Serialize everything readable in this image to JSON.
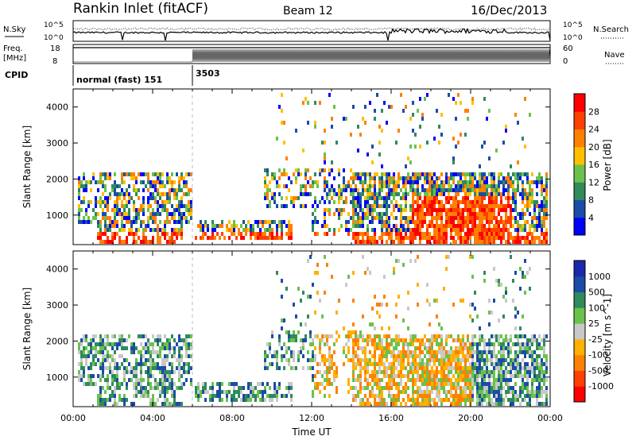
{
  "header": {
    "station": "Rankin Inlet (fitACF)",
    "beam": "Beam 12",
    "date": "16/Dec/2013"
  },
  "colors": {
    "power": [
      "#0000ff",
      "#1a4ca8",
      "#2f8a5c",
      "#6bc24a",
      "#ffc000",
      "#ff8000",
      "#ff4000",
      "#ff0000"
    ],
    "velocity": [
      "#ff0000",
      "#ff4000",
      "#ff8000",
      "#ffb000",
      "#c8c8c8",
      "#6bc24a",
      "#2f8a5c",
      "#1a4ca8",
      "#1a2aa8"
    ]
  },
  "chart_data": [
    {
      "type": "line",
      "panel": "noise",
      "left_label": "N.Sky",
      "right_label": "N.Search",
      "left_ticks": [
        "10^5",
        "10^0"
      ],
      "right_ticks": [
        "10^5",
        "10^0"
      ]
    },
    {
      "type": "line",
      "panel": "frequency",
      "left_label_1": "Freq.",
      "left_label_2": "[MHz]",
      "right_label": "Nave",
      "left_ticks": [
        "18",
        "8"
      ],
      "right_ticks": [
        "60",
        "0"
      ],
      "cpid_label": "CPID",
      "cpid_segments": [
        {
          "start_hour": 0,
          "text": "normal (fast) 151"
        },
        {
          "start_hour": 6,
          "text": "3503"
        }
      ]
    },
    {
      "type": "heatmap",
      "panel": "power",
      "ylabel": "Slant Range [km]",
      "ylim": [
        180,
        4500
      ],
      "yticks": [
        1000,
        2000,
        3000,
        4000
      ],
      "xlim": [
        0,
        24
      ],
      "colorbar_label": "Power [dB]",
      "colorbar_ticks": [
        "4",
        "8",
        "12",
        "16",
        "20",
        "24",
        "28"
      ]
    },
    {
      "type": "heatmap",
      "panel": "velocity",
      "ylabel": "Slant Range [km]",
      "ylim": [
        180,
        4500
      ],
      "yticks": [
        1000,
        2000,
        3000,
        4000
      ],
      "xlim": [
        0,
        24
      ],
      "xticks": [
        "00:00",
        "04:00",
        "08:00",
        "12:00",
        "16:00",
        "20:00",
        "00:00"
      ],
      "xlabel": "Time UT",
      "colorbar_label": "Velocity [m s^-1]",
      "colorbar_ticks": [
        "1000",
        "500",
        "100",
        "25",
        "-25",
        "-100",
        "-500",
        "-1000"
      ]
    }
  ]
}
